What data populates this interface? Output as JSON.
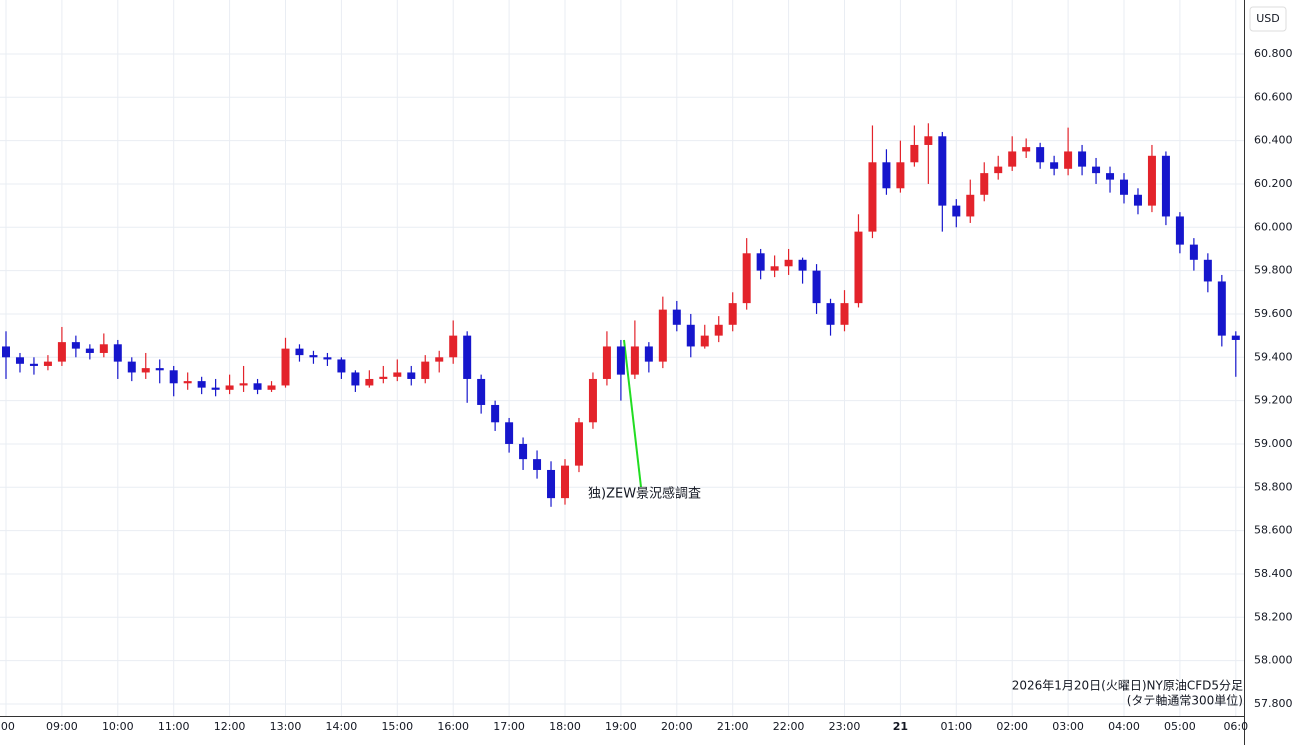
{
  "chart_data": {
    "type": "candlestick",
    "unit": "USD",
    "annotation": "独)ZEW景況感調査",
    "footnotes": [
      "2026年1月20日(火曜日)NY原油CFD5分足",
      "(タテ軸通常300単位)"
    ],
    "categories": [
      ":00",
      null,
      null,
      null,
      "09:00",
      null,
      null,
      null,
      "10:00",
      null,
      null,
      null,
      "11:00",
      null,
      null,
      null,
      "12:00",
      null,
      null,
      null,
      "13:00",
      null,
      null,
      null,
      "14:00",
      null,
      null,
      null,
      "15:00",
      null,
      null,
      null,
      "16:00",
      null,
      null,
      null,
      "17:00",
      null,
      null,
      null,
      "18:00",
      null,
      null,
      null,
      "19:00",
      null,
      null,
      null,
      "20:00",
      null,
      null,
      null,
      "21:00",
      null,
      null,
      null,
      "22:00",
      null,
      null,
      null,
      "23:00",
      null,
      null,
      null,
      "21",
      null,
      null,
      null,
      "01:00",
      null,
      null,
      null,
      "02:00",
      null,
      null,
      null,
      "03:00",
      null,
      null,
      null,
      "04:00",
      null,
      null,
      null,
      "05:00",
      null,
      null,
      null,
      "06:0"
    ],
    "open": [
      59.45,
      59.4,
      59.37,
      59.36,
      59.38,
      59.47,
      59.44,
      59.42,
      59.46,
      59.38,
      59.33,
      59.35,
      59.34,
      59.28,
      59.29,
      59.26,
      59.25,
      59.27,
      59.28,
      59.25,
      59.27,
      59.44,
      59.41,
      59.4,
      59.39,
      59.33,
      59.27,
      59.3,
      59.31,
      59.33,
      59.3,
      59.38,
      59.4,
      59.5,
      59.3,
      59.18,
      59.1,
      59.0,
      58.93,
      58.88,
      58.75,
      58.9,
      59.1,
      59.3,
      59.45,
      59.32,
      59.45,
      59.38,
      59.62,
      59.55,
      59.45,
      59.5,
      59.55,
      59.65,
      59.88,
      59.8,
      59.82,
      59.85,
      59.8,
      59.65,
      59.55,
      59.65,
      59.98,
      60.3,
      60.18,
      60.3,
      60.38,
      60.42,
      60.1,
      60.05,
      60.15,
      60.25,
      60.28,
      60.35,
      60.37,
      60.3,
      60.27,
      60.35,
      60.28,
      60.25,
      60.22,
      60.15,
      60.1,
      60.33,
      60.05,
      59.92,
      59.85,
      59.75,
      59.5
    ],
    "high": [
      59.52,
      59.42,
      59.4,
      59.41,
      59.54,
      59.5,
      59.46,
      59.51,
      59.48,
      59.4,
      59.42,
      59.39,
      59.36,
      59.33,
      59.31,
      59.3,
      59.32,
      59.36,
      59.3,
      59.29,
      59.49,
      59.46,
      59.43,
      59.42,
      59.4,
      59.34,
      59.34,
      59.36,
      59.39,
      59.36,
      59.41,
      59.43,
      59.57,
      59.52,
      59.32,
      59.2,
      59.12,
      59.03,
      58.97,
      58.92,
      58.93,
      59.12,
      59.33,
      59.52,
      59.48,
      59.57,
      59.47,
      59.68,
      59.66,
      59.6,
      59.55,
      59.59,
      59.7,
      59.95,
      59.9,
      59.87,
      59.9,
      59.86,
      59.83,
      59.67,
      59.71,
      60.06,
      60.47,
      60.36,
      60.4,
      60.47,
      60.48,
      60.44,
      60.13,
      60.22,
      60.3,
      60.33,
      60.42,
      60.41,
      60.39,
      60.33,
      60.46,
      60.38,
      60.32,
      60.28,
      60.25,
      60.18,
      60.38,
      60.35,
      60.07,
      59.95,
      59.88,
      59.78,
      59.52
    ],
    "low": [
      59.3,
      59.33,
      59.32,
      59.34,
      59.36,
      59.4,
      59.39,
      59.4,
      59.3,
      59.29,
      59.3,
      59.28,
      59.22,
      59.25,
      59.23,
      59.22,
      59.23,
      59.24,
      59.23,
      59.24,
      59.26,
      59.38,
      59.37,
      59.36,
      59.3,
      59.24,
      59.26,
      59.28,
      59.29,
      59.27,
      59.28,
      59.33,
      59.37,
      59.19,
      59.14,
      59.06,
      58.96,
      58.88,
      58.84,
      58.71,
      58.72,
      58.87,
      59.07,
      59.27,
      59.2,
      59.3,
      59.33,
      59.35,
      59.52,
      59.4,
      59.44,
      59.47,
      59.52,
      59.62,
      59.76,
      59.77,
      59.78,
      59.74,
      59.6,
      59.5,
      59.52,
      59.63,
      59.95,
      60.15,
      60.16,
      60.28,
      60.2,
      59.98,
      60.0,
      60.02,
      60.12,
      60.22,
      60.26,
      60.32,
      60.27,
      60.24,
      60.24,
      60.24,
      60.2,
      60.16,
      60.11,
      60.06,
      60.07,
      60.01,
      59.88,
      59.8,
      59.7,
      59.45,
      59.31
    ],
    "close": [
      59.4,
      59.37,
      59.36,
      59.38,
      59.47,
      59.44,
      59.42,
      59.46,
      59.38,
      59.33,
      59.35,
      59.34,
      59.28,
      59.29,
      59.26,
      59.25,
      59.27,
      59.28,
      59.25,
      59.27,
      59.44,
      59.41,
      59.4,
      59.39,
      59.33,
      59.27,
      59.3,
      59.31,
      59.33,
      59.3,
      59.38,
      59.4,
      59.5,
      59.3,
      59.18,
      59.1,
      59.0,
      58.93,
      58.88,
      58.75,
      58.9,
      59.1,
      59.3,
      59.45,
      59.32,
      59.45,
      59.38,
      59.62,
      59.55,
      59.45,
      59.5,
      59.55,
      59.65,
      59.88,
      59.8,
      59.82,
      59.85,
      59.8,
      59.65,
      59.55,
      59.65,
      59.98,
      60.3,
      60.18,
      60.3,
      60.38,
      60.42,
      60.1,
      60.05,
      60.15,
      60.25,
      60.28,
      60.35,
      60.37,
      60.3,
      60.27,
      60.35,
      60.28,
      60.25,
      60.22,
      60.15,
      60.1,
      60.33,
      60.05,
      59.92,
      59.85,
      59.75,
      59.5,
      59.48
    ],
    "up_color": "#e3232b",
    "down_color": "#1616cc",
    "ylim": [
      57.726,
      61.049
    ],
    "yticks": [
      {
        "value": 57.8,
        "label": "57.800"
      },
      {
        "value": 58.0,
        "label": "58.000"
      },
      {
        "value": 58.2,
        "label": "58.200"
      },
      {
        "value": 58.4,
        "label": "58.400"
      },
      {
        "value": 58.6,
        "label": "58.600"
      },
      {
        "value": 58.8,
        "label": "58.800"
      },
      {
        "value": 59.0,
        "label": "59.000"
      },
      {
        "value": 59.2,
        "label": "59.200"
      },
      {
        "value": 59.4,
        "label": "59.400"
      },
      {
        "value": 59.6,
        "label": "59.600"
      },
      {
        "value": 59.8,
        "label": "59.800"
      },
      {
        "value": 60.0,
        "label": "60.000"
      },
      {
        "value": 60.2,
        "label": "60.200"
      },
      {
        "value": 60.4,
        "label": "60.400"
      },
      {
        "value": 60.6,
        "label": "60.600"
      },
      {
        "value": 60.8,
        "label": "60.800"
      }
    ],
    "grid": true
  }
}
